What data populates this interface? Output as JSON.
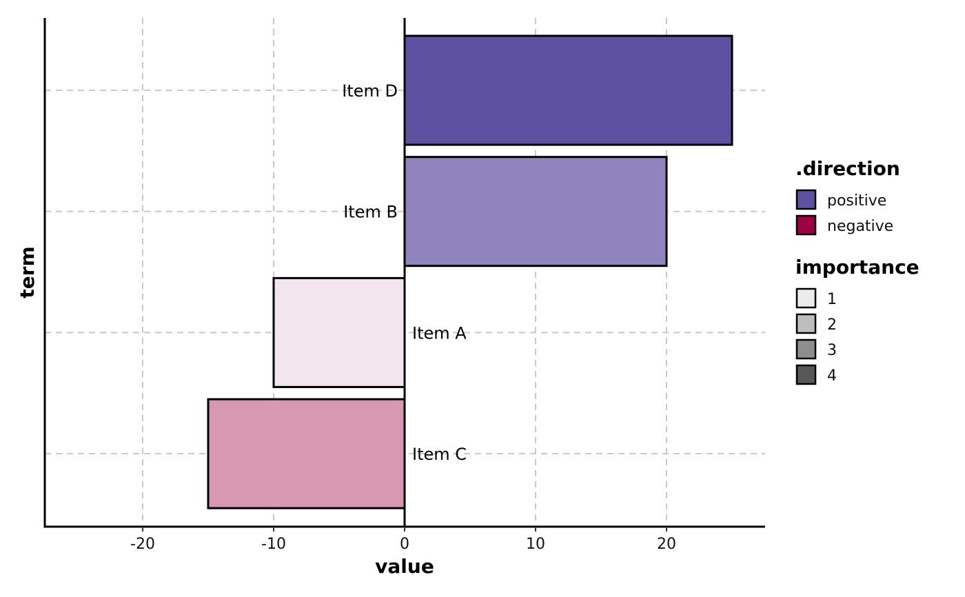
{
  "chart_data": {
    "type": "bar",
    "orientation": "horizontal",
    "xlabel": "value",
    "ylabel": "term",
    "xlim": [
      -27.5,
      27.5
    ],
    "x_ticks": [
      -20,
      -10,
      0,
      10,
      20
    ],
    "grid": true,
    "legend_position": "right",
    "bars": [
      {
        "term": "Item D",
        "value": 25,
        "direction": "positive",
        "importance": 4,
        "color": "#5e51a2"
      },
      {
        "term": "Item B",
        "value": 20,
        "direction": "positive",
        "importance": 3,
        "color": "#8f84bd"
      },
      {
        "term": "Item A",
        "value": -10,
        "direction": "negative",
        "importance": 1,
        "color": "#f3e5ed"
      },
      {
        "term": "Item C",
        "value": -15,
        "direction": "negative",
        "importance": 2,
        "color": "#d898b2"
      }
    ],
    "legends": [
      {
        "title": ".direction",
        "items": [
          {
            "label": "positive",
            "color": "#5e51a2"
          },
          {
            "label": "negative",
            "color": "#9e0142"
          }
        ]
      },
      {
        "title": "importance",
        "items": [
          {
            "label": "1",
            "color": "#ececec"
          },
          {
            "label": "2",
            "color": "#bebebe"
          },
          {
            "label": "3",
            "color": "#8d8d8d"
          },
          {
            "label": "4",
            "color": "#575757"
          }
        ]
      }
    ]
  }
}
